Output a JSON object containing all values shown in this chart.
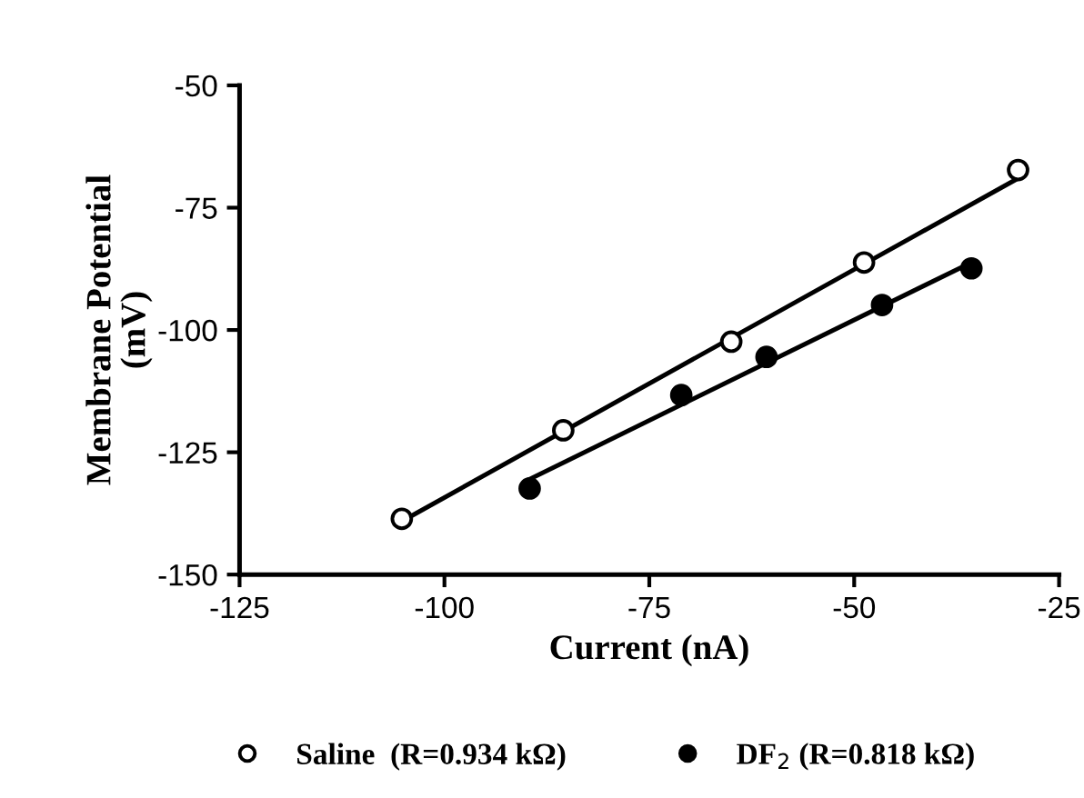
{
  "chart_data": {
    "type": "scatter",
    "xlabel": "Current (nA)",
    "ylabel": "Membrane Potential\n(mV)",
    "xlim": [
      -125,
      -25
    ],
    "ylim": [
      -150,
      -50
    ],
    "xticks": [
      -125,
      -100,
      -75,
      -50,
      -25
    ],
    "yticks": [
      -150,
      -125,
      -100,
      -75,
      -50
    ],
    "grid": false,
    "legend": "bottom",
    "marker": "circle",
    "series": [
      {
        "name": "Saline  (R=0.934 kΩ)",
        "color": "#ffffff",
        "x": [
          -105.2,
          -85.5,
          -65.0,
          -48.8,
          -30.0
        ],
        "values": [
          -138.6,
          -120.5,
          -102.4,
          -86.2,
          -67.3
        ]
      },
      {
        "name": "DF$_{2}$ (R=0.818 kΩ)",
        "color": "#000000",
        "x": [
          -89.6,
          -71.1,
          -60.7,
          -46.6,
          -35.7
        ],
        "values": [
          -132.4,
          -113.3,
          -105.5,
          -94.9,
          -87.4
        ]
      },
      {
        "type": "line",
        "color": "#000000",
        "marker": "none",
        "x": [
          -105.2,
          -30.0
        ],
        "values": [
          -139.1,
          -69.0
        ]
      },
      {
        "type": "line",
        "color": "#000000",
        "marker": "none",
        "x": [
          -89.6,
          -35.7
        ],
        "values": [
          -130.5,
          -86.2
        ]
      }
    ]
  }
}
